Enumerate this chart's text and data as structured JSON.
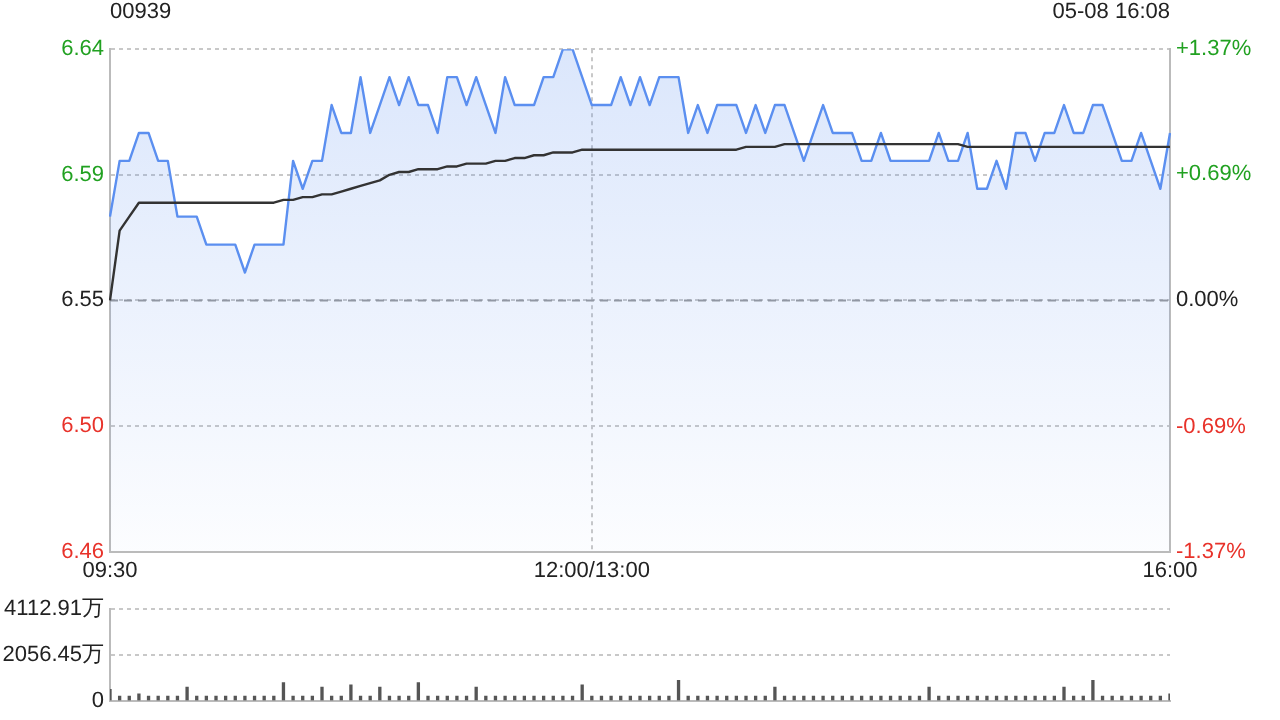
{
  "chart_data": [
    {
      "type": "area",
      "title": "00939",
      "annotations": [
        "05-08 16:08"
      ],
      "categories": [
        "09:30",
        null,
        null,
        null,
        null,
        null,
        null,
        null,
        null,
        null,
        null,
        null,
        null,
        null,
        null,
        null,
        null,
        null,
        null,
        null,
        null,
        null,
        null,
        null,
        null,
        null,
        null,
        null,
        null,
        null,
        null,
        null,
        null,
        null,
        null,
        null,
        null,
        null,
        null,
        null,
        null,
        null,
        null,
        null,
        null,
        null,
        null,
        null,
        null,
        null,
        "12:00/13:00",
        null,
        null,
        null,
        null,
        null,
        null,
        null,
        null,
        null,
        null,
        null,
        null,
        null,
        null,
        null,
        null,
        null,
        null,
        null,
        null,
        null,
        null,
        null,
        null,
        null,
        null,
        null,
        null,
        null,
        null,
        null,
        null,
        null,
        null,
        null,
        null,
        null,
        null,
        null,
        null,
        null,
        null,
        null,
        null,
        null,
        null,
        null,
        null,
        null,
        null,
        null,
        null,
        null,
        null,
        null,
        null,
        null,
        null,
        null,
        "16:00"
      ],
      "ylim": [
        6.46,
        6.64
      ],
      "yticks": [
        6.46,
        {
          "value": 6.505,
          "label": "6.50"
        },
        6.55,
        {
          "value": 6.595,
          "label": "6.59"
        },
        6.64
      ],
      "y2lim": [
        -1.37,
        1.37
      ],
      "y2ticks": [
        {
          "value": -1.37,
          "label": "-1.37%"
        },
        {
          "value": -0.69,
          "label": "-0.69%"
        },
        {
          "value": 0,
          "label": "0.00%"
        },
        {
          "value": 0.69,
          "label": "+0.69%"
        },
        {
          "value": 1.37,
          "label": "+1.37%"
        }
      ],
      "ref_lines": [
        {
          "axis": "y",
          "value": 6.55,
          "color": "#999999",
          "line_style": "dashed"
        }
      ],
      "grid": true,
      "series": [
        {
          "color": "#5b8ff0",
          "values": [
            6.58,
            6.6,
            6.6,
            6.61,
            6.61,
            6.6,
            6.6,
            6.58,
            6.58,
            6.58,
            6.57,
            6.57,
            6.57,
            6.57,
            6.56,
            6.57,
            6.57,
            6.57,
            6.57,
            6.6,
            6.59,
            6.6,
            6.6,
            6.62,
            6.61,
            6.61,
            6.63,
            6.61,
            6.62,
            6.63,
            6.62,
            6.63,
            6.62,
            6.62,
            6.61,
            6.63,
            6.63,
            6.62,
            6.63,
            6.62,
            6.61,
            6.63,
            6.62,
            6.62,
            6.62,
            6.63,
            6.63,
            6.64,
            6.64,
            6.63,
            6.62,
            6.62,
            6.62,
            6.63,
            6.62,
            6.63,
            6.62,
            6.63,
            6.63,
            6.63,
            6.61,
            6.62,
            6.61,
            6.62,
            6.62,
            6.62,
            6.61,
            6.62,
            6.61,
            6.62,
            6.62,
            6.61,
            6.6,
            6.61,
            6.62,
            6.61,
            6.61,
            6.61,
            6.6,
            6.6,
            6.61,
            6.6,
            6.6,
            6.6,
            6.6,
            6.6,
            6.61,
            6.6,
            6.6,
            6.61,
            6.59,
            6.59,
            6.6,
            6.59,
            6.61,
            6.61,
            6.6,
            6.61,
            6.61,
            6.62,
            6.61,
            6.61,
            6.62,
            6.62,
            6.61,
            6.6,
            6.6,
            6.61,
            6.6,
            6.59,
            6.61
          ]
        },
        {
          "type": "line",
          "color": "#333333",
          "values": [
            6.55,
            6.575,
            6.58,
            6.585,
            6.585,
            6.585,
            6.585,
            6.585,
            6.585,
            6.585,
            6.585,
            6.585,
            6.585,
            6.585,
            6.585,
            6.585,
            6.585,
            6.585,
            6.586,
            6.586,
            6.587,
            6.587,
            6.588,
            6.588,
            6.589,
            6.59,
            6.591,
            6.592,
            6.593,
            6.595,
            6.596,
            6.596,
            6.597,
            6.597,
            6.597,
            6.598,
            6.598,
            6.599,
            6.599,
            6.599,
            6.6,
            6.6,
            6.601,
            6.601,
            6.602,
            6.602,
            6.603,
            6.603,
            6.603,
            6.604,
            6.604,
            6.604,
            6.604,
            6.604,
            6.604,
            6.604,
            6.604,
            6.604,
            6.604,
            6.604,
            6.604,
            6.604,
            6.604,
            6.604,
            6.604,
            6.604,
            6.605,
            6.605,
            6.605,
            6.605,
            6.606,
            6.606,
            6.606,
            6.606,
            6.606,
            6.606,
            6.606,
            6.606,
            6.606,
            6.606,
            6.606,
            6.606,
            6.606,
            6.606,
            6.606,
            6.606,
            6.606,
            6.606,
            6.606,
            6.605,
            6.605,
            6.605,
            6.605,
            6.605,
            6.605,
            6.605,
            6.605,
            6.605,
            6.605,
            6.605,
            6.605,
            6.605,
            6.605,
            6.605,
            6.605,
            6.605,
            6.605,
            6.605,
            6.605,
            6.605,
            6.605
          ]
        }
      ]
    },
    {
      "type": "bar",
      "color": "#555555",
      "tick_labels": "y",
      "grid": "y",
      "categories": [
        null,
        null,
        null,
        null,
        null,
        null,
        null,
        null,
        null,
        null,
        null,
        null,
        null,
        null,
        null,
        null,
        null,
        null,
        null,
        null,
        null,
        null,
        null,
        null,
        null,
        null,
        null,
        null,
        null,
        null,
        null,
        null,
        null,
        null,
        null,
        null,
        null,
        null,
        null,
        null,
        null,
        null,
        null,
        null,
        null,
        null,
        null,
        null,
        null,
        null,
        null,
        null,
        null,
        null,
        null,
        null,
        null,
        null,
        null,
        null,
        null,
        null,
        null,
        null,
        null,
        null,
        null,
        null,
        null,
        null,
        null,
        null,
        null,
        null,
        null,
        null,
        null,
        null,
        null,
        null,
        null,
        null,
        null,
        null,
        null,
        null,
        null,
        null,
        null,
        null,
        null,
        null,
        null,
        null,
        null,
        null,
        null,
        null,
        null,
        null,
        null,
        null,
        null,
        null,
        null,
        null,
        null,
        null,
        null,
        null,
        null
      ],
      "ylim": [
        0,
        4112.91
      ],
      "yticks": [
        0,
        {
          "value": 2056.45,
          "label": "2056.45万"
        },
        {
          "value": 4112.91,
          "label": "4112.91万"
        }
      ],
      "values": [
        500,
        200,
        200,
        300,
        200,
        200,
        200,
        200,
        600,
        200,
        200,
        200,
        200,
        200,
        200,
        200,
        200,
        200,
        800,
        200,
        200,
        200,
        600,
        200,
        200,
        700,
        200,
        200,
        600,
        200,
        200,
        200,
        800,
        200,
        200,
        200,
        200,
        200,
        600,
        200,
        200,
        200,
        200,
        200,
        200,
        200,
        200,
        200,
        200,
        700,
        200,
        200,
        200,
        200,
        200,
        200,
        200,
        200,
        200,
        900,
        200,
        200,
        200,
        200,
        200,
        200,
        200,
        200,
        200,
        600,
        200,
        200,
        200,
        200,
        200,
        200,
        200,
        200,
        200,
        200,
        200,
        200,
        200,
        200,
        200,
        600,
        200,
        200,
        200,
        200,
        200,
        200,
        200,
        200,
        200,
        200,
        200,
        200,
        200,
        600,
        200,
        200,
        900,
        200,
        200,
        200,
        200,
        200,
        200,
        200,
        300
      ]
    }
  ]
}
